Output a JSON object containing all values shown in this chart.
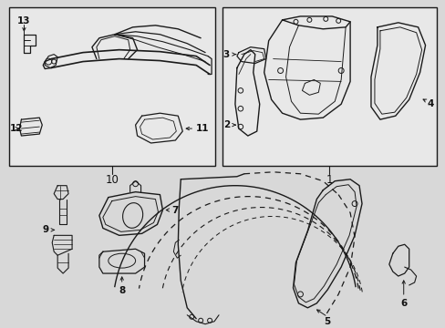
{
  "bg_color": "#d8d8d8",
  "box_fill": "#e8e8e8",
  "line_color": "#1a1a1a",
  "text_color": "#111111",
  "fig_w": 4.89,
  "fig_h": 3.6,
  "dpi": 100
}
